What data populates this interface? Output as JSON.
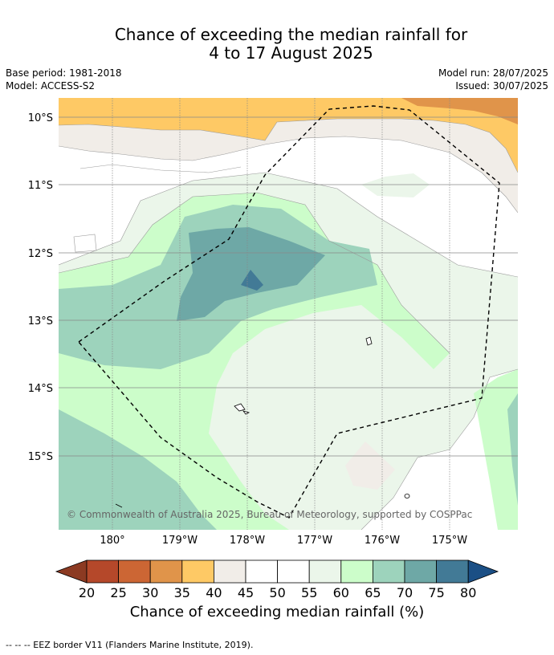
{
  "title_line1": "Chance of exceeding the median rainfall for",
  "title_line2": "4 to 17 August 2025",
  "base_period": "Base period: 1981-2018",
  "model": "Model: ACCESS-S2",
  "model_run": "Model run: 28/07/2025",
  "issued": "Issued: 30/07/2025",
  "copyright": "© Commonwealth of Australia 2025, Bureau of Meteorology, supported by COSPPac",
  "lat_labels": [
    "10°S",
    "11°S",
    "12°S",
    "13°S",
    "14°S",
    "15°S"
  ],
  "lon_labels": [
    "180°",
    "179°W",
    "178°W",
    "177°W",
    "176°W",
    "175°W"
  ],
  "colorbar": {
    "ticks": [
      "20",
      "25",
      "30",
      "35",
      "40",
      "45",
      "50",
      "55",
      "60",
      "65",
      "70",
      "75",
      "80"
    ],
    "colors": [
      "#8c3a22",
      "#b5482a",
      "#cc6634",
      "#e0944a",
      "#fec965",
      "#f1ede8",
      "#ffffff",
      "#ffffff",
      "#ebf6ea",
      "#ccfdca",
      "#9dd3bc",
      "#6ea8a6",
      "#427a96",
      "#1b4f85"
    ],
    "title": "Chance of exceeding median rainfall (%)"
  },
  "footnote": "--  --  -- EEZ border V11 (Flanders Marine Institute, 2019)."
}
